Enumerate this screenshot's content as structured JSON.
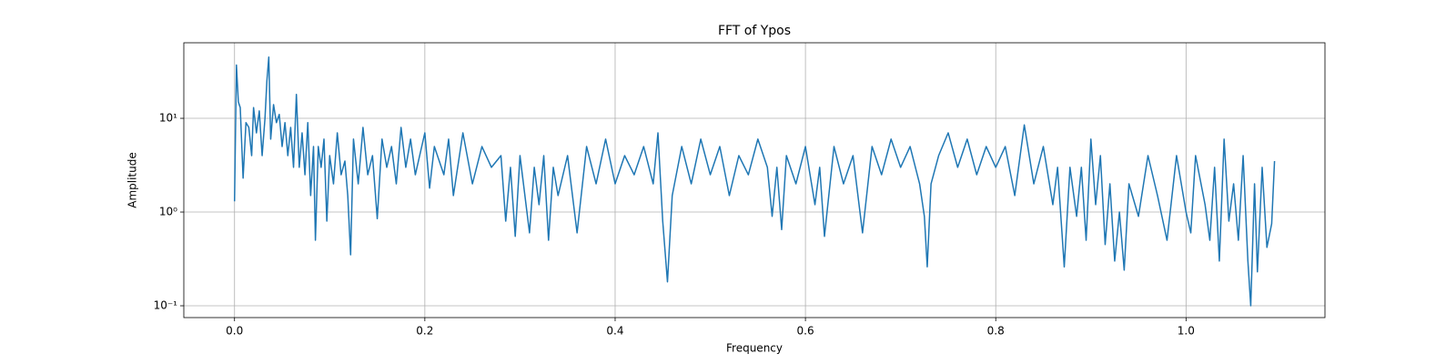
{
  "chart_data": {
    "type": "line",
    "title": "FFT of Ypos",
    "xlabel": "Frequency",
    "ylabel": "Amplitude",
    "color": "#1f77b4",
    "yscale": "log",
    "grid": true,
    "xlim": [
      -0.0533,
      1.146
    ],
    "ylim": [
      0.0748,
      64
    ],
    "xticks": [
      {
        "value": 0,
        "label": "0.0"
      },
      0.2,
      0.4,
      0.6,
      0.8,
      {
        "value": 1,
        "label": "1.0"
      }
    ],
    "yticks": [
      {
        "value": 0.1,
        "label": "10⁻¹"
      },
      {
        "value": 1,
        "label": "10⁰"
      },
      {
        "value": 10,
        "label": "10¹"
      }
    ],
    "x": [
      0,
      0.002,
      0.004,
      0.006,
      0.009,
      0.012,
      0.015,
      0.018,
      0.02,
      0.023,
      0.026,
      0.029,
      0.032,
      0.034,
      0.036,
      0.038,
      0.041,
      0.044,
      0.047,
      0.05,
      0.053,
      0.056,
      0.059,
      0.062,
      0.065,
      0.068,
      0.071,
      0.074,
      0.077,
      0.08,
      0.083,
      0.085,
      0.088,
      0.091,
      0.094,
      0.097,
      0.1,
      0.104,
      0.108,
      0.112,
      0.116,
      0.119,
      0.122,
      0.125,
      0.13,
      0.135,
      0.14,
      0.145,
      0.15,
      0.155,
      0.16,
      0.165,
      0.17,
      0.175,
      0.18,
      0.185,
      0.19,
      0.2,
      0.205,
      0.21,
      0.22,
      0.225,
      0.23,
      0.24,
      0.25,
      0.26,
      0.27,
      0.28,
      0.285,
      0.29,
      0.295,
      0.3,
      0.31,
      0.315,
      0.32,
      0.325,
      0.33,
      0.335,
      0.34,
      0.35,
      0.36,
      0.37,
      0.38,
      0.39,
      0.4,
      0.41,
      0.42,
      0.43,
      0.44,
      0.445,
      0.45,
      0.455,
      0.46,
      0.47,
      0.48,
      0.49,
      0.5,
      0.51,
      0.52,
      0.53,
      0.54,
      0.55,
      0.56,
      0.565,
      0.57,
      0.575,
      0.58,
      0.59,
      0.6,
      0.61,
      0.615,
      0.62,
      0.63,
      0.64,
      0.65,
      0.66,
      0.67,
      0.68,
      0.69,
      0.7,
      0.71,
      0.72,
      0.725,
      0.728,
      0.732,
      0.74,
      0.75,
      0.76,
      0.77,
      0.78,
      0.79,
      0.8,
      0.81,
      0.82,
      0.83,
      0.84,
      0.85,
      0.86,
      0.865,
      0.872,
      0.878,
      0.885,
      0.89,
      0.895,
      0.9,
      0.905,
      0.91,
      0.915,
      0.92,
      0.925,
      0.93,
      0.935,
      0.94,
      0.95,
      0.96,
      0.97,
      0.98,
      0.99,
      1.0,
      1.005,
      1.01,
      1.02,
      1.025,
      1.03,
      1.035,
      1.04,
      1.045,
      1.05,
      1.055,
      1.06,
      1.065,
      1.068,
      1.072,
      1.075,
      1.08,
      1.085,
      1.09,
      1.093
    ],
    "values": [
      1.3,
      37,
      15,
      13,
      2.3,
      9,
      8,
      4,
      13,
      7,
      12,
      4,
      10,
      25,
      45,
      6,
      14,
      9,
      11,
      5,
      9,
      4,
      8,
      3,
      18,
      3,
      7,
      2.5,
      9,
      1.5,
      5,
      0.5,
      5,
      3,
      6,
      0.8,
      4,
      2,
      7,
      2.5,
      3.5,
      1.5,
      0.35,
      6,
      2,
      8,
      2.5,
      4,
      0.85,
      6,
      3,
      5,
      2,
      8,
      3,
      6,
      2.5,
      7,
      1.8,
      5,
      2.5,
      6,
      1.5,
      7,
      2,
      5,
      3,
      4,
      0.8,
      3,
      0.55,
      4,
      0.6,
      3,
      1.2,
      4,
      0.5,
      3,
      1.5,
      4,
      0.6,
      5,
      2,
      6,
      2,
      4,
      2.5,
      5,
      2,
      7,
      0.8,
      0.18,
      1.5,
      5,
      2,
      6,
      2.5,
      5,
      1.5,
      4,
      2.5,
      6,
      3,
      0.9,
      3,
      0.65,
      4,
      2,
      5,
      1.2,
      3,
      0.55,
      5,
      2,
      4,
      0.6,
      5,
      2.5,
      6,
      3,
      5,
      2,
      0.9,
      0.26,
      2,
      4,
      7,
      3,
      6,
      2.5,
      5,
      3,
      5,
      1.5,
      8.5,
      2,
      5,
      1.2,
      3,
      0.26,
      3,
      0.9,
      3,
      0.5,
      6,
      1.2,
      4,
      0.45,
      2,
      0.3,
      1,
      0.24,
      2,
      0.9,
      4,
      1.5,
      0.5,
      4,
      1,
      0.6,
      4,
      1.2,
      0.5,
      3,
      0.3,
      6,
      0.8,
      2,
      0.5,
      4,
      0.3,
      0.1,
      2,
      0.23,
      3,
      0.42,
      0.75,
      3.5
    ]
  }
}
